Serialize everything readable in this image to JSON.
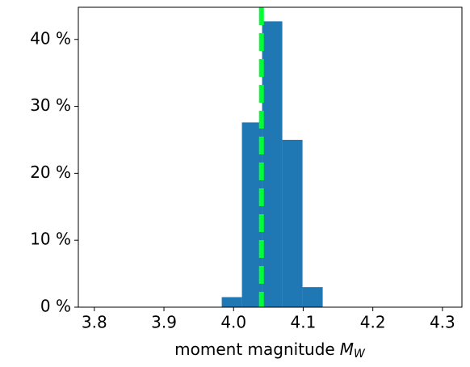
{
  "chart_data": {
    "type": "histogram",
    "xlabel": "moment magnitude",
    "xlabel_symbol": "M",
    "xlabel_subscript": "W",
    "bins": [
      3.983,
      4.012,
      4.041,
      4.07,
      4.099,
      4.128
    ],
    "values": [
      1.5,
      27.6,
      42.7,
      25,
      3
    ],
    "color": "#1f77b4",
    "vline": {
      "x": 4.04,
      "color": "#00ff33",
      "style": "dashed"
    },
    "xlim": [
      3.777,
      4.328
    ],
    "xticks": [
      3.8,
      3.9,
      {
        "value": 4,
        "label": "4.0"
      },
      4.1,
      4.2,
      4.3
    ],
    "ylim": [
      0,
      44.8
    ],
    "yticks": [
      {
        "value": 0,
        "label": "0 %"
      },
      {
        "value": 10,
        "label": "10 %"
      },
      {
        "value": 20,
        "label": "20 %"
      },
      {
        "value": 30,
        "label": "30 %"
      },
      {
        "value": 40,
        "label": "40 %"
      }
    ],
    "grid": false
  }
}
